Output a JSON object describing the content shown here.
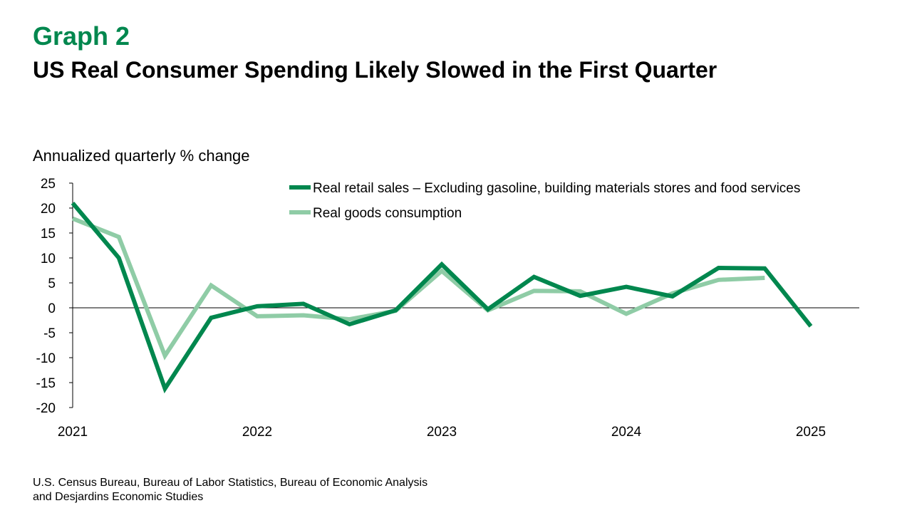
{
  "header": {
    "graph_label": "Graph 2",
    "title": "US Real Consumer Spending Likely Slowed in the First Quarter"
  },
  "source": {
    "line1": "U.S. Census Bureau, Bureau of Labor Statistics, Bureau of Economic Analysis",
    "line2": "and Desjardins Economic Studies"
  },
  "colors": {
    "brand_green": "#00874E",
    "series_dark": "#00874E",
    "series_light": "#8FCCA6",
    "axis": "#000000"
  },
  "chart_data": {
    "type": "line",
    "title": "US Real Consumer Spending Likely Slowed in the First Quarter",
    "ylabel": "Annualized quarterly % change",
    "xlabel": "",
    "ylim": [
      -20,
      25
    ],
    "yticks": [
      25,
      20,
      15,
      10,
      5,
      0,
      -5,
      -10,
      -15,
      -20
    ],
    "xlim": [
      2021.0,
      2025.25
    ],
    "xtick_labels": [
      "2021",
      "2022",
      "2023",
      "2024",
      "2025"
    ],
    "legend_position": "top-right",
    "grid": false,
    "series": [
      {
        "name": "Real retail sales – Excluding gasoline, building materials stores and food services",
        "color": "#00874E",
        "x": [
          2021.0,
          2021.25,
          2021.5,
          2021.75,
          2022.0,
          2022.25,
          2022.5,
          2022.75,
          2023.0,
          2023.25,
          2023.5,
          2023.75,
          2024.0,
          2024.25,
          2024.5,
          2024.75,
          2025.0
        ],
        "values": [
          21.0,
          10.0,
          -16.2,
          -2.0,
          0.3,
          0.8,
          -3.3,
          -0.5,
          8.7,
          -0.3,
          6.2,
          2.4,
          4.2,
          2.3,
          8.0,
          7.9,
          -3.7
        ]
      },
      {
        "name": "Real goods consumption",
        "color": "#8FCCA6",
        "x": [
          2021.0,
          2021.25,
          2021.5,
          2021.75,
          2022.0,
          2022.25,
          2022.5,
          2022.75,
          2023.0,
          2023.25,
          2023.5,
          2023.75,
          2024.0,
          2024.25,
          2024.5,
          2024.75
        ],
        "values": [
          17.9,
          14.2,
          -9.6,
          4.5,
          -1.7,
          -1.5,
          -2.3,
          -0.6,
          7.4,
          -0.5,
          3.4,
          3.3,
          -1.2,
          2.9,
          5.6,
          6.0
        ]
      }
    ]
  }
}
